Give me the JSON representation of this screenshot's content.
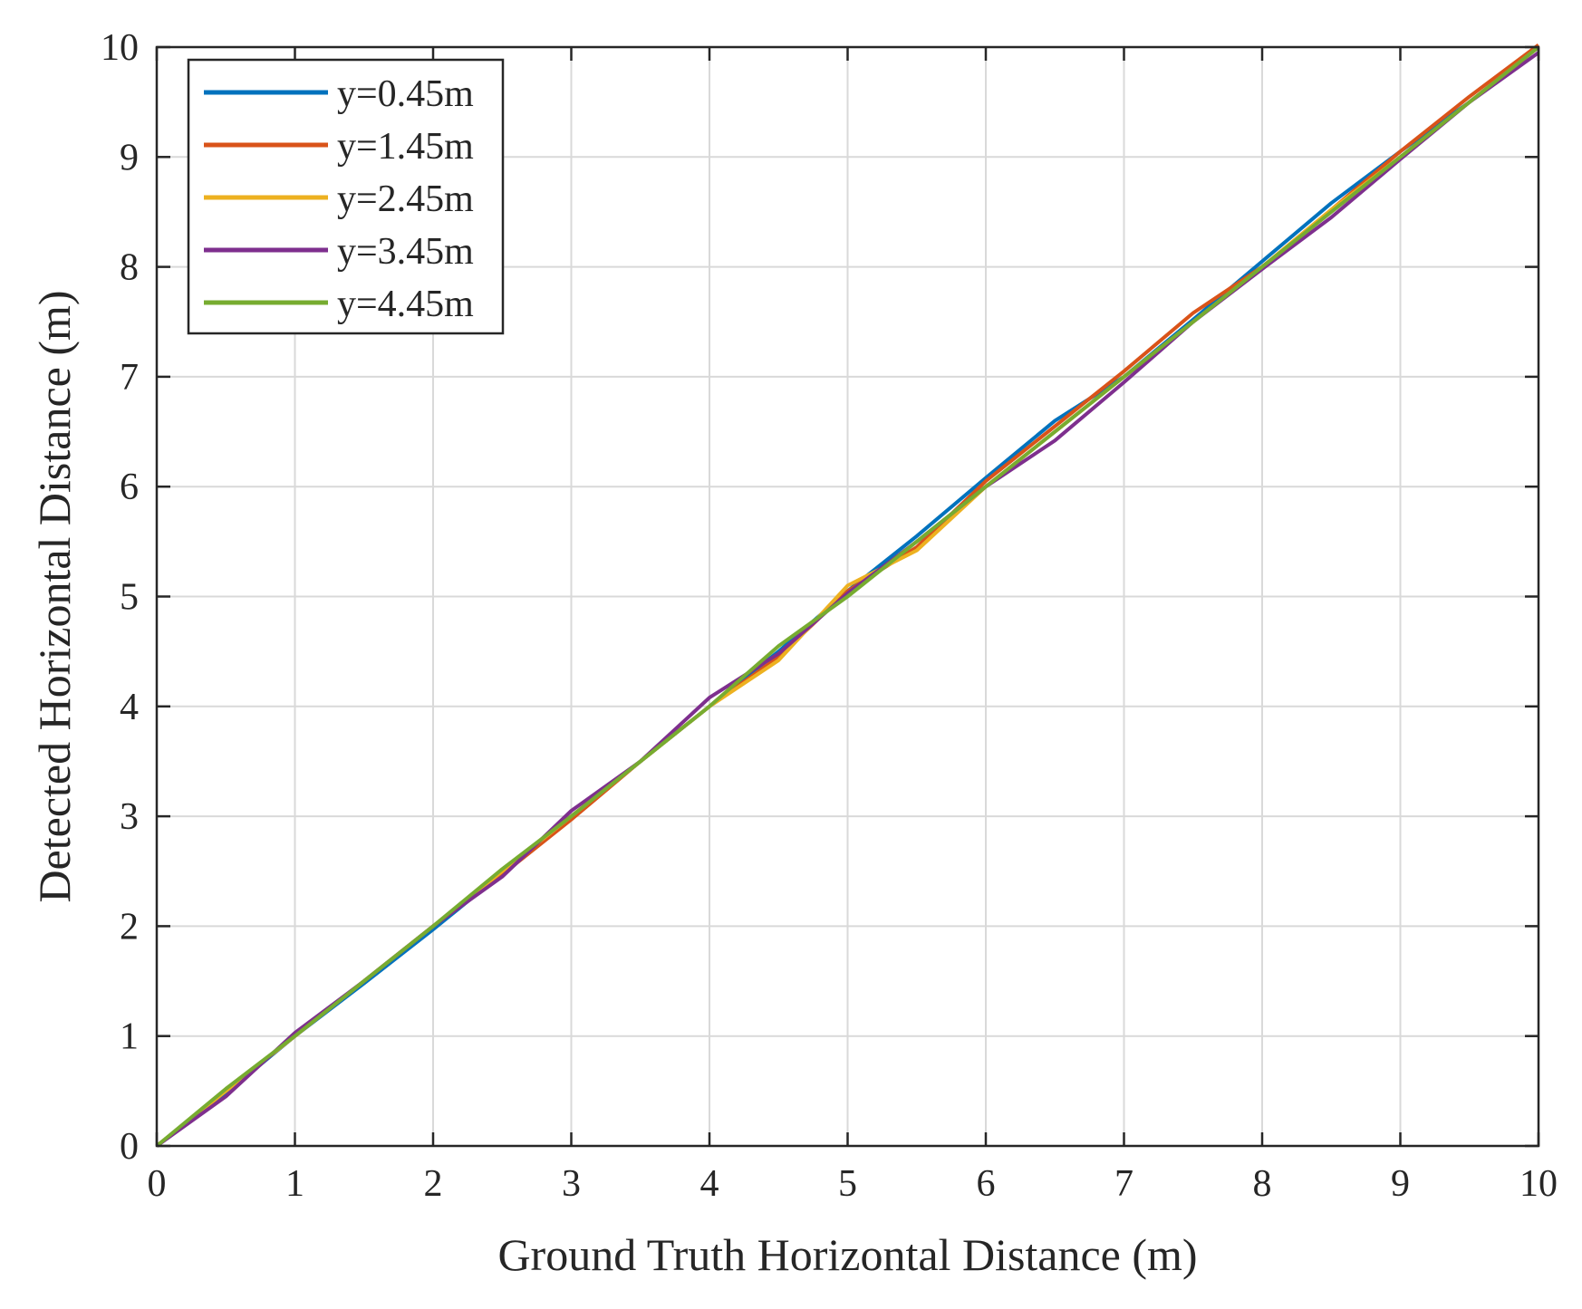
{
  "chart_data": {
    "type": "line",
    "xlabel": "Ground Truth Horizontal Distance (m)",
    "ylabel": "Detected Horizontal Distance (m)",
    "xlim": [
      0,
      10
    ],
    "ylim": [
      0,
      10
    ],
    "xticks": [
      "0",
      "1",
      "2",
      "3",
      "4",
      "5",
      "6",
      "7",
      "8",
      "9",
      "10"
    ],
    "yticks": [
      "0",
      "1",
      "2",
      "3",
      "4",
      "5",
      "6",
      "7",
      "8",
      "9",
      "10"
    ],
    "grid": true,
    "legend_position": "top-left",
    "x": [
      0,
      0.5,
      1,
      1.5,
      2,
      2.5,
      3,
      3.5,
      4,
      4.5,
      5,
      5.5,
      6,
      6.5,
      7,
      7.5,
      8,
      8.5,
      9,
      9.5,
      10
    ],
    "series": [
      {
        "name": "y=0.45m",
        "color": "#0072BD",
        "values": [
          0,
          0.48,
          1.0,
          1.48,
          1.97,
          2.48,
          3.0,
          3.5,
          4.0,
          4.5,
          5.05,
          5.55,
          6.08,
          6.6,
          7.0,
          7.52,
          8.05,
          8.58,
          9.05,
          9.5,
          10.0
        ]
      },
      {
        "name": "y=1.45m",
        "color": "#D95319",
        "values": [
          0,
          0.5,
          1.0,
          1.5,
          2.0,
          2.47,
          2.97,
          3.5,
          4.0,
          4.45,
          5.05,
          5.45,
          6.05,
          6.55,
          7.05,
          7.58,
          8.0,
          8.52,
          9.05,
          9.55,
          10.02
        ]
      },
      {
        "name": "y=2.45m",
        "color": "#EDB120",
        "values": [
          0,
          0.5,
          1.0,
          1.5,
          2.0,
          2.5,
          3.0,
          3.5,
          4.0,
          4.42,
          5.1,
          5.42,
          6.0,
          6.5,
          7.0,
          7.5,
          8.0,
          8.52,
          9.0,
          9.5,
          10.0
        ]
      },
      {
        "name": "y=3.45m",
        "color": "#7E2F8E",
        "values": [
          0,
          0.45,
          1.03,
          1.5,
          2.0,
          2.45,
          3.05,
          3.5,
          4.08,
          4.48,
          5.03,
          5.5,
          6.0,
          6.42,
          6.95,
          7.5,
          7.98,
          8.45,
          8.98,
          9.5,
          9.95
        ]
      },
      {
        "name": "y=4.45m",
        "color": "#77AC30",
        "values": [
          0,
          0.52,
          1.0,
          1.5,
          2.0,
          2.52,
          3.0,
          3.5,
          4.0,
          4.55,
          5.0,
          5.5,
          6.0,
          6.5,
          7.0,
          7.5,
          8.0,
          8.5,
          9.0,
          9.5,
          10.0
        ]
      }
    ]
  }
}
